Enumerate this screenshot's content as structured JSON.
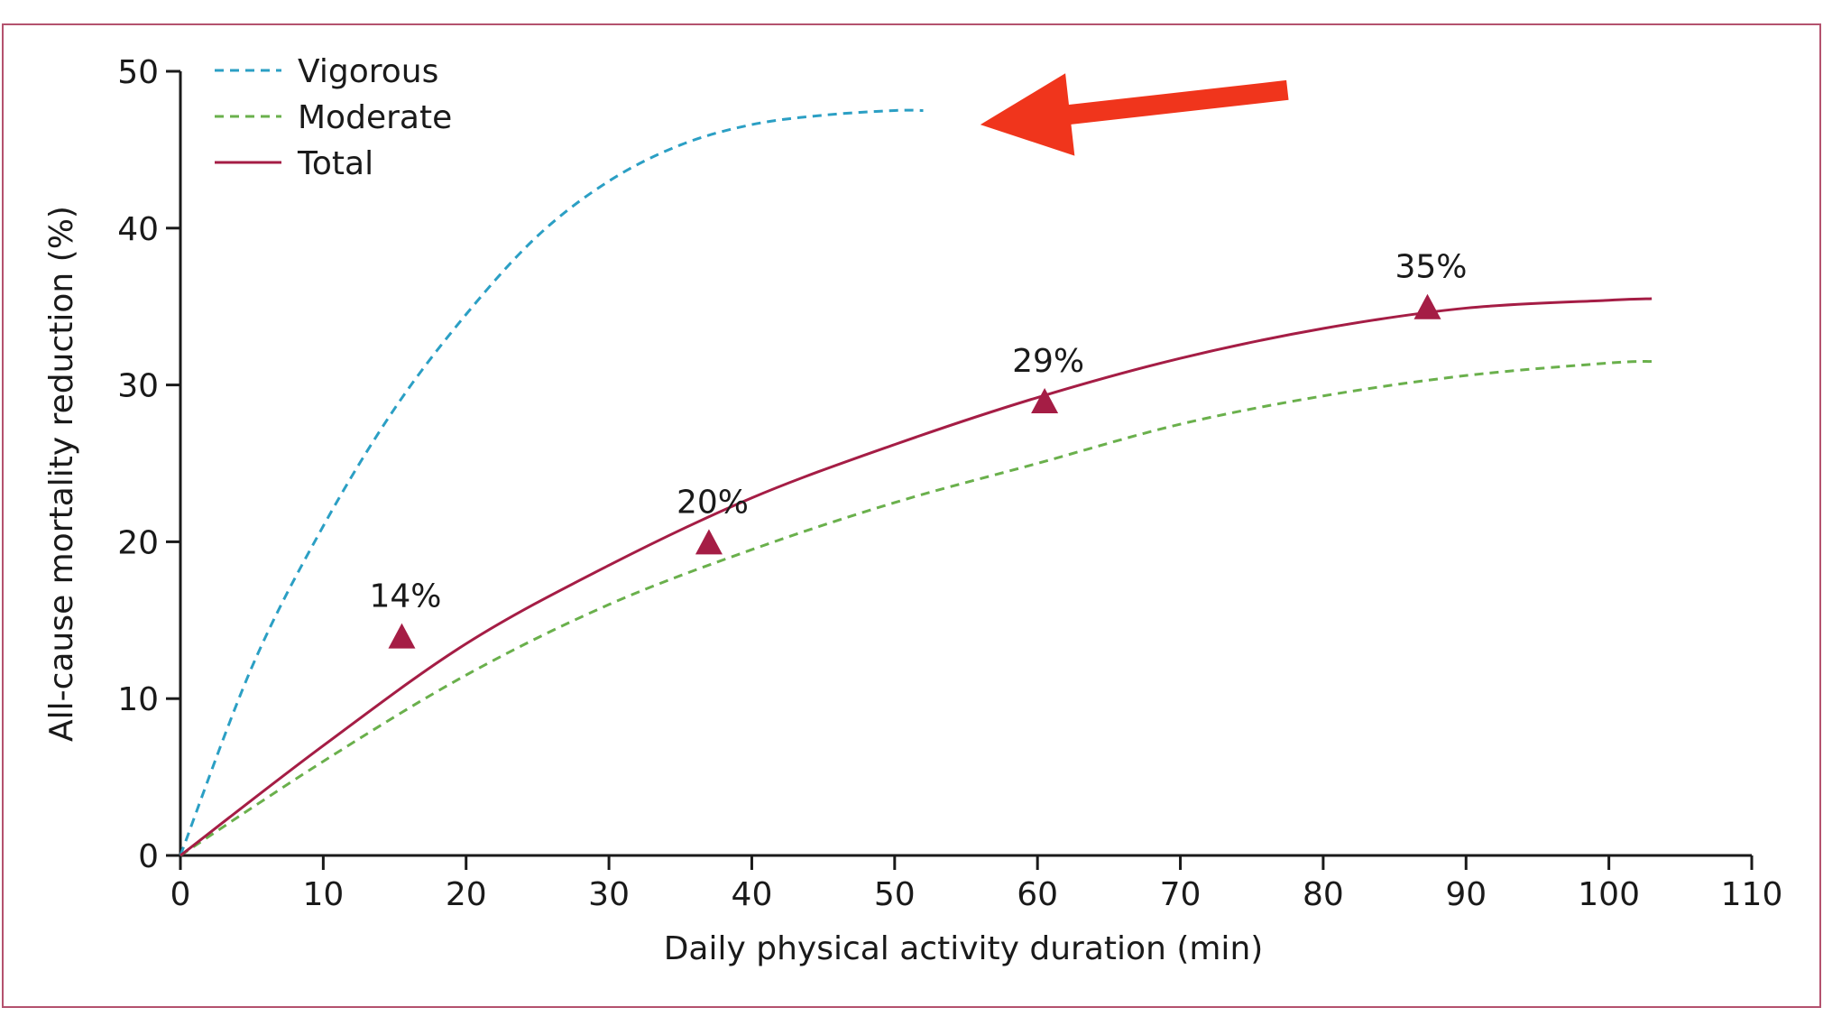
{
  "chart_data": {
    "type": "line",
    "title": "",
    "xlabel": "Daily physical activity duration (min)",
    "ylabel": "All-cause mortality reduction (%)",
    "xlim": [
      0,
      110
    ],
    "ylim": [
      0,
      50
    ],
    "xticks": [
      0,
      10,
      20,
      30,
      40,
      50,
      60,
      70,
      80,
      90,
      100,
      110
    ],
    "yticks": [
      0,
      10,
      20,
      30,
      40,
      50
    ],
    "grid": false,
    "legend_position": "top-left",
    "series": [
      {
        "name": "Vigorous",
        "style": "dashed",
        "color": "#2b9fc4",
        "x": [
          0,
          5,
          10,
          15,
          20,
          25,
          30,
          35,
          40,
          45,
          50,
          52
        ],
        "y": [
          0,
          12,
          21,
          28.5,
          34.5,
          39.5,
          43,
          45.3,
          46.6,
          47.2,
          47.5,
          47.5
        ]
      },
      {
        "name": "Moderate",
        "style": "dashed",
        "color": "#6ab04c",
        "x": [
          0,
          10,
          20,
          30,
          40,
          50,
          60,
          70,
          80,
          90,
          100,
          103
        ],
        "y": [
          0,
          6,
          11.5,
          16,
          19.5,
          22.5,
          25,
          27.5,
          29.3,
          30.6,
          31.4,
          31.5
        ]
      },
      {
        "name": "Total",
        "style": "solid",
        "color": "#a51d45",
        "x": [
          0,
          10,
          20,
          30,
          40,
          50,
          60,
          70,
          80,
          90,
          100,
          103
        ],
        "y": [
          0,
          7,
          13.5,
          18.5,
          22.8,
          26.2,
          29.2,
          31.7,
          33.6,
          34.9,
          35.4,
          35.5
        ]
      }
    ],
    "markers": [
      {
        "x": 15.5,
        "y": 14,
        "label": "14%"
      },
      {
        "x": 37,
        "y": 20,
        "label": "20%"
      },
      {
        "x": 60.5,
        "y": 29,
        "label": "29%"
      },
      {
        "x": 87.3,
        "y": 35,
        "label": "35%"
      }
    ],
    "marker_color": "#a51d45",
    "annotation_arrow": {
      "color": "#f0351c",
      "points_to": "Vigorous",
      "from": [
        77.5,
        48.8
      ],
      "to": [
        56,
        46.6
      ]
    }
  }
}
